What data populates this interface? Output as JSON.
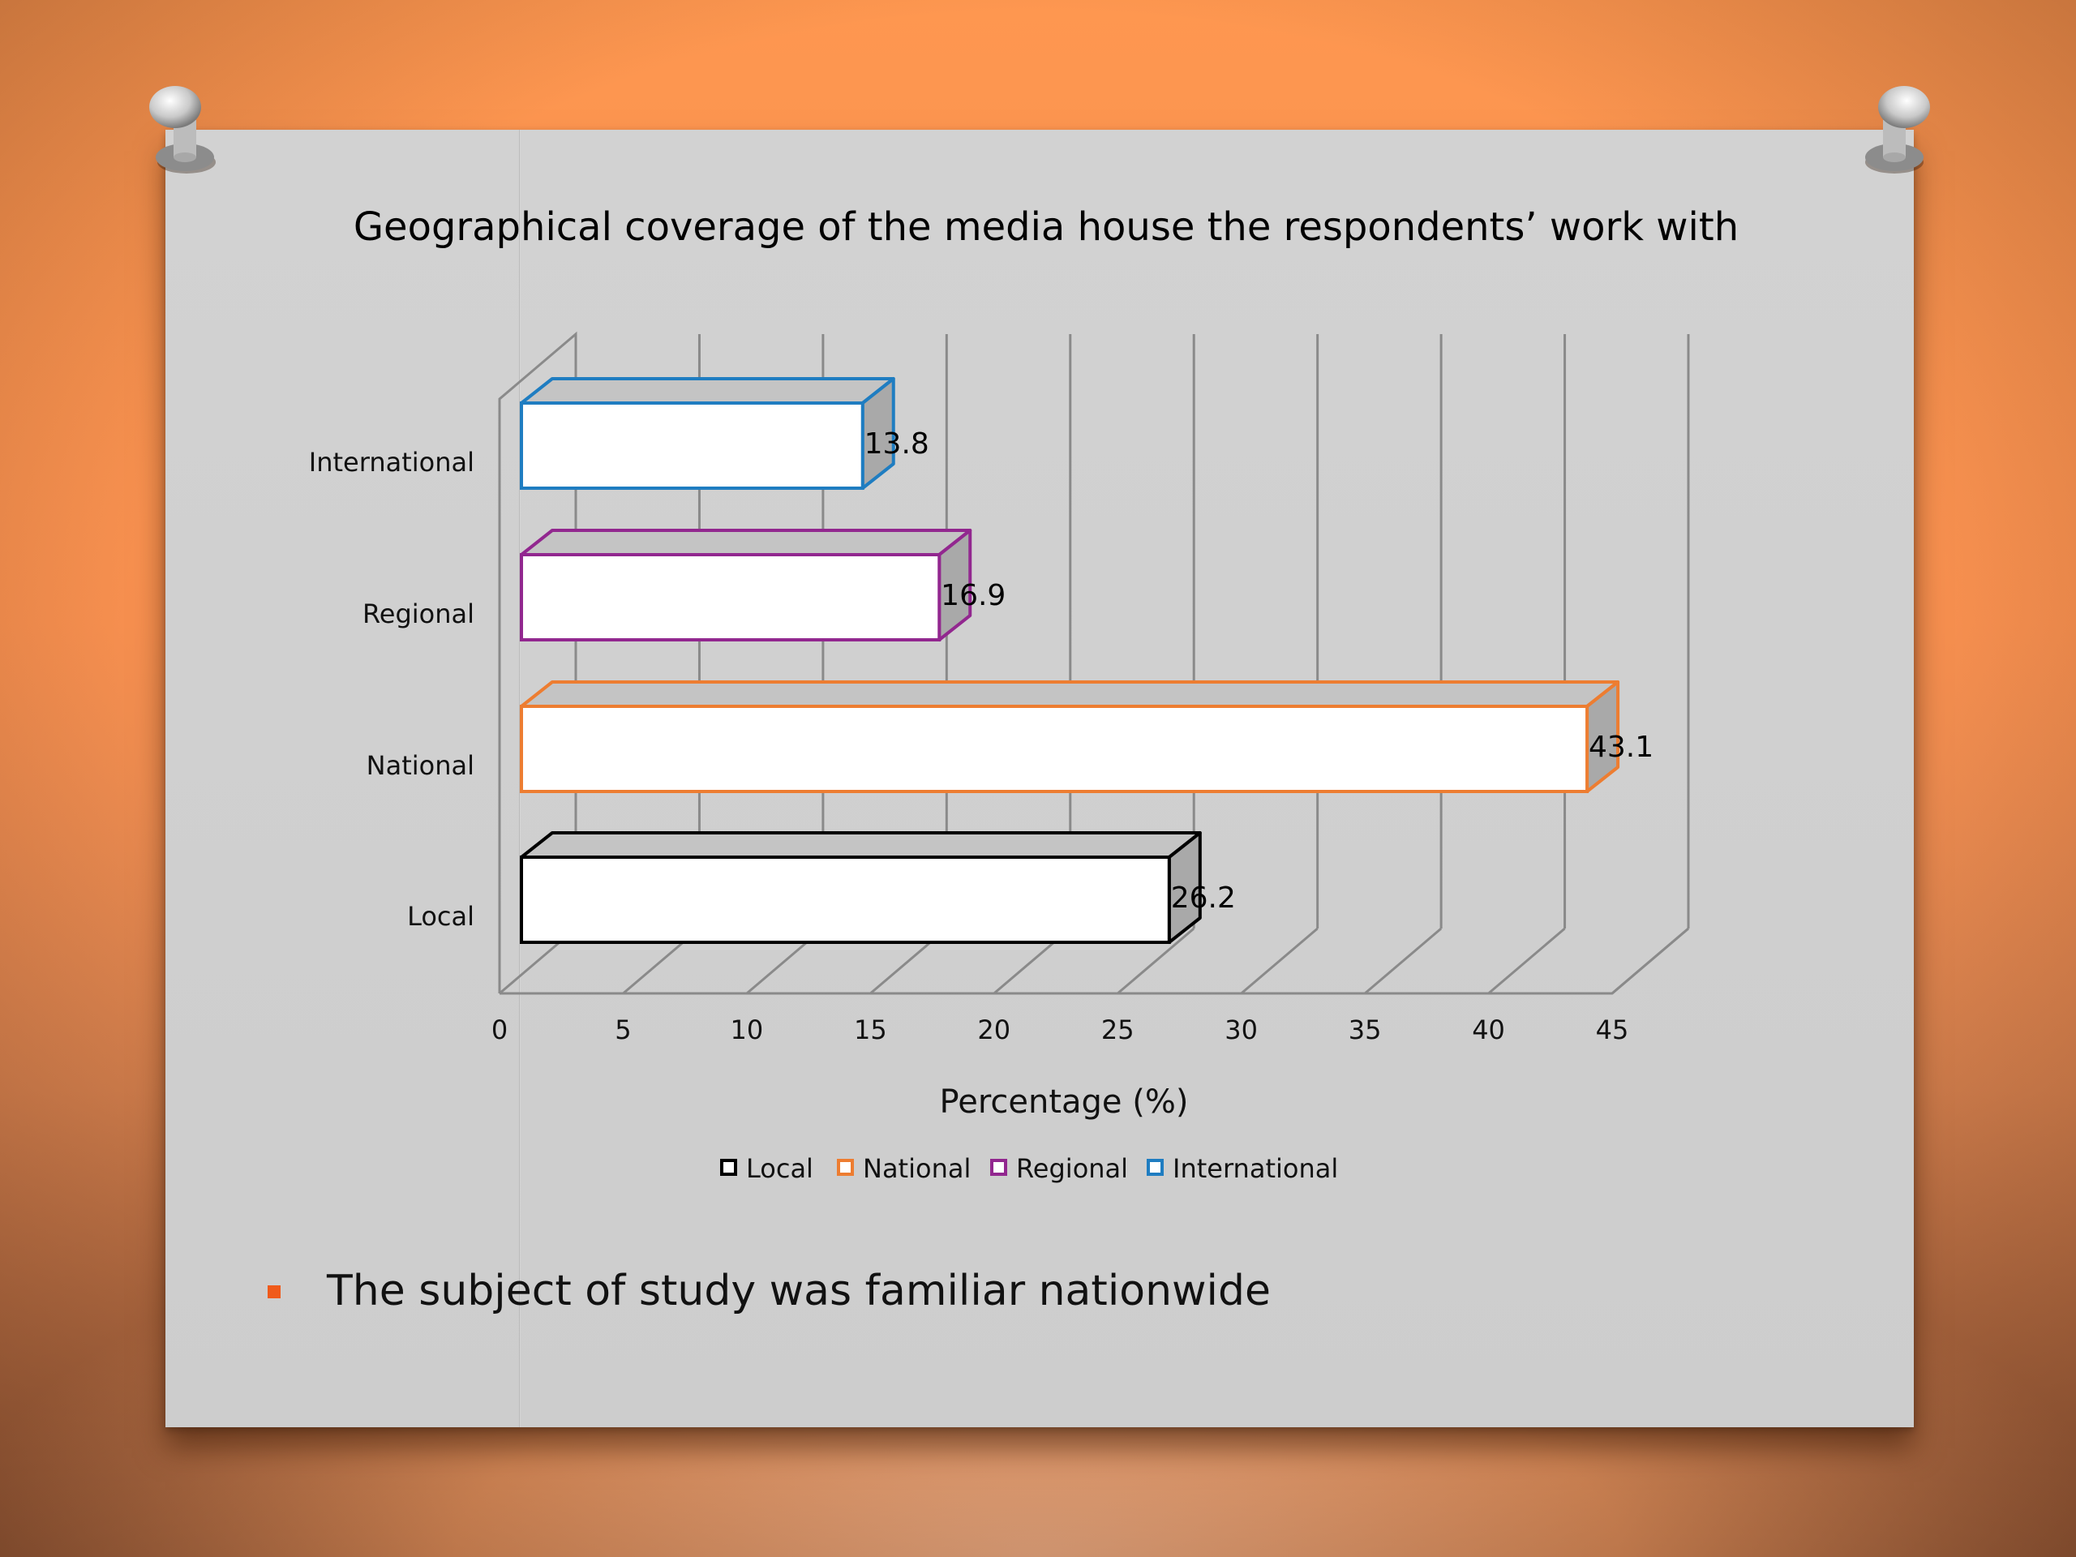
{
  "slide": {
    "bullet_text": "The subject of study was familiar nationwide",
    "accent_color": "#f05a1a"
  },
  "chart_data": {
    "type": "bar",
    "orientation": "horizontal",
    "style": "3d",
    "title": "Geographical coverage of the media house the respondents’ work with",
    "xlabel": "Percentage (%)",
    "ylabel": "",
    "categories": [
      "Local",
      "National",
      "Regional",
      "International"
    ],
    "values": [
      26.2,
      43.1,
      16.9,
      13.8
    ],
    "data_labels": [
      "26.2",
      "43.1",
      "16.9",
      "13.8"
    ],
    "xlim": [
      0,
      45
    ],
    "xticks": [
      "0",
      "5",
      "10",
      "15",
      "20",
      "25",
      "30",
      "35",
      "40",
      "45"
    ],
    "series_colors": [
      "#000000",
      "#ed7d31",
      "#92278f",
      "#1f7dc1"
    ],
    "legend": {
      "placement": "bottom",
      "entries": [
        "Local",
        "National",
        "Regional",
        "International"
      ]
    },
    "grid": true
  }
}
